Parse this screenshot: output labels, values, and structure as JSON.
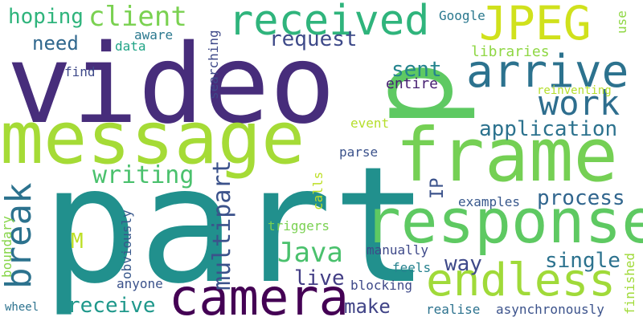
{
  "words": [
    {
      "text": "part",
      "color": "#21908d"
    },
    {
      "text": "video",
      "color": "#472d7b"
    },
    {
      "text": "message",
      "color": "#a5db36"
    },
    {
      "text": "frame",
      "color": "#75d054"
    },
    {
      "text": "response",
      "color": "#5ec962"
    },
    {
      "text": "p",
      "color": "#5ec962"
    },
    {
      "text": "camera",
      "color": "#440154"
    },
    {
      "text": "endless",
      "color": "#a0da39"
    },
    {
      "text": "received",
      "color": "#2fb47c"
    },
    {
      "text": "arrive",
      "color": "#2c728e"
    },
    {
      "text": "JPEG",
      "color": "#d0e11c"
    },
    {
      "text": "work",
      "color": "#2e6e8e"
    },
    {
      "text": "break",
      "color": "#2c728e"
    },
    {
      "text": "client",
      "color": "#7ad151"
    },
    {
      "text": "hoping",
      "color": "#2fb47c"
    },
    {
      "text": "Java",
      "color": "#4ac16d"
    },
    {
      "text": "writing",
      "color": "#4ac16d"
    },
    {
      "text": "application",
      "color": "#2c728e"
    },
    {
      "text": "multipart",
      "color": "#3b528b"
    },
    {
      "text": "request",
      "color": "#3e4a89"
    },
    {
      "text": "sent",
      "color": "#25848e"
    },
    {
      "text": "process",
      "color": "#31668e"
    },
    {
      "text": "single",
      "color": "#2c728e"
    },
    {
      "text": "live",
      "color": "#433e85"
    },
    {
      "text": "way",
      "color": "#3e4989"
    },
    {
      "text": "receive",
      "color": "#1f988b"
    },
    {
      "text": "make",
      "color": "#414487"
    },
    {
      "text": "need",
      "color": "#31688e"
    },
    {
      "text": "IP",
      "color": "#3b528b"
    },
    {
      "text": "M",
      "color": "#bddf26"
    },
    {
      "text": "entire",
      "color": "#482173"
    },
    {
      "text": "libraries",
      "color": "#8fd744"
    },
    {
      "text": "data",
      "color": "#20a486"
    },
    {
      "text": "aware",
      "color": "#2a788e"
    },
    {
      "text": "Google",
      "color": "#2a788e"
    },
    {
      "text": "use",
      "color": "#8fd744"
    },
    {
      "text": "find",
      "color": "#3e4989"
    },
    {
      "text": "searching",
      "color": "#3e4989"
    },
    {
      "text": "reinventing",
      "color": "#b5de2b"
    },
    {
      "text": "event",
      "color": "#b5de2b"
    },
    {
      "text": "parse",
      "color": "#3b528b"
    },
    {
      "text": "calls",
      "color": "#bddf26"
    },
    {
      "text": "examples",
      "color": "#38588c"
    },
    {
      "text": "triggers",
      "color": "#7ad151"
    },
    {
      "text": "obviously",
      "color": "#38588c"
    },
    {
      "text": "boundary",
      "color": "#86d549"
    },
    {
      "text": "manually",
      "color": "#3e4989"
    },
    {
      "text": "feels",
      "color": "#26828e"
    },
    {
      "text": "anyone",
      "color": "#3b528b"
    },
    {
      "text": "blocking",
      "color": "#3e4989"
    },
    {
      "text": "realise",
      "color": "#2c728e"
    },
    {
      "text": "asynchronously",
      "color": "#3b528b"
    },
    {
      "text": "finished",
      "color": "#a0da39"
    },
    {
      "text": "wheel",
      "color": "#2c728e"
    }
  ]
}
